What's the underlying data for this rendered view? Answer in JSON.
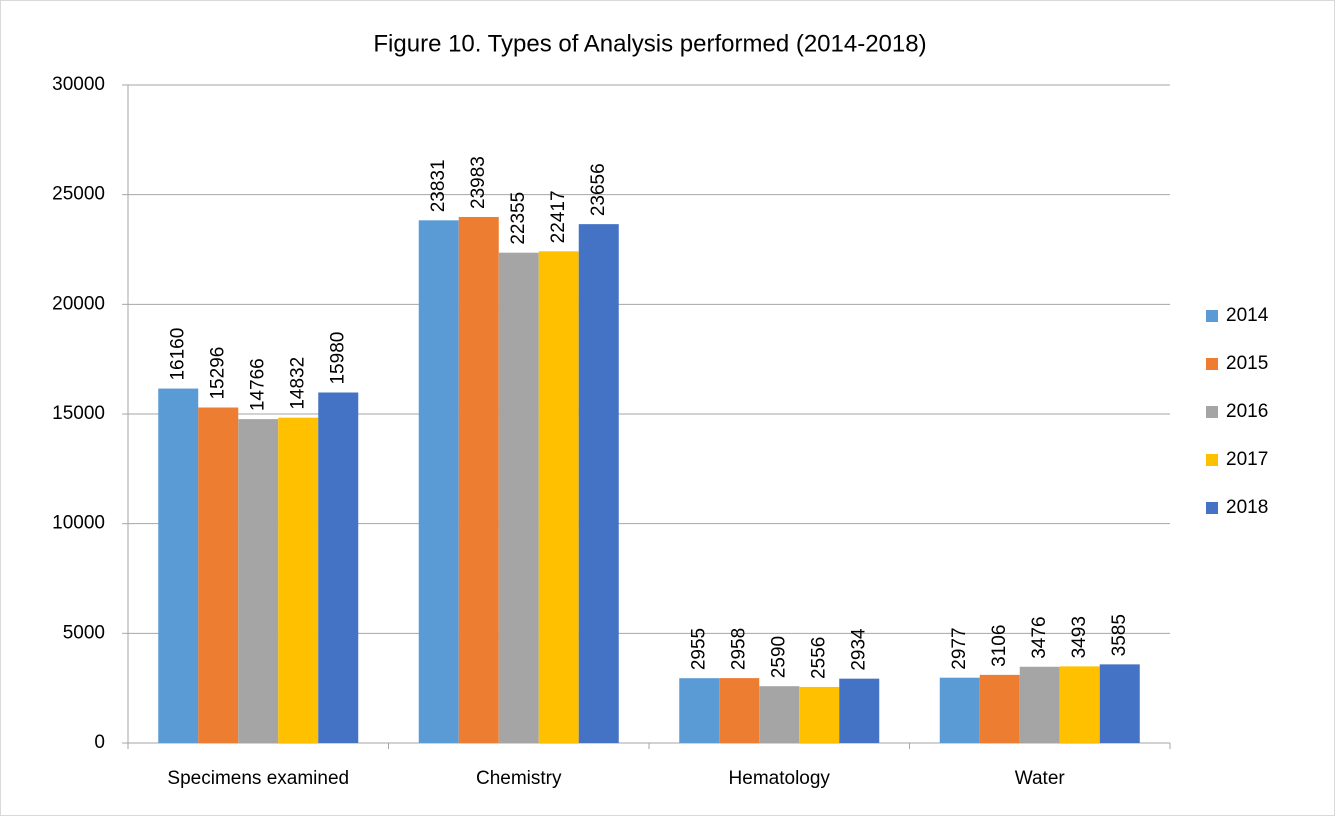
{
  "chart_data": {
    "type": "bar",
    "title": "Figure 10. Types of Analysis performed (2014-2018)",
    "categories": [
      "Specimens examined",
      "Chemistry",
      "Hematology",
      "Water"
    ],
    "series": [
      {
        "name": "2014",
        "color": "#5b9bd5",
        "values": [
          16160,
          23831,
          2955,
          2977
        ]
      },
      {
        "name": "2015",
        "color": "#ed7d31",
        "values": [
          15296,
          23983,
          2958,
          3106
        ]
      },
      {
        "name": "2016",
        "color": "#a5a5a5",
        "values": [
          14766,
          22355,
          2590,
          3476
        ]
      },
      {
        "name": "2017",
        "color": "#ffc000",
        "values": [
          14832,
          22417,
          2556,
          3493
        ]
      },
      {
        "name": "2018",
        "color": "#4472c4",
        "values": [
          15980,
          23656,
          2934,
          3585
        ]
      }
    ],
    "ylim": [
      0,
      30000
    ],
    "yticks": [
      0,
      5000,
      10000,
      15000,
      20000,
      25000,
      30000
    ],
    "grid": true,
    "legend": "right"
  }
}
